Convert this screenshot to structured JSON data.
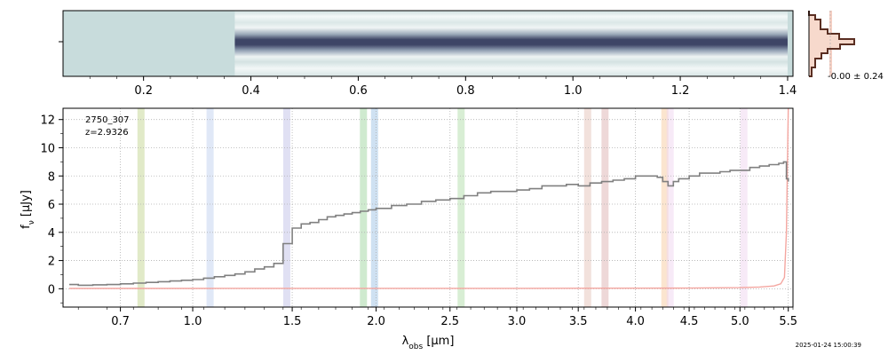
{
  "colors": {
    "spectrum": "#808080",
    "error": "#f4a6a0",
    "grid": "#b0b0b0",
    "trace_bg": "#c9dcdc",
    "trace_dark": "#3e4566",
    "hist_fill": "#f7d9cc",
    "hist_edge": "#5a2e22",
    "hist_band": "#f6d0c4"
  },
  "chart_data": [
    {
      "type": "heatmap",
      "description_of_panel": "2D spectrum",
      "xticks": [
        "0.2",
        "0.4",
        "0.6",
        "0.8",
        "1.0",
        "1.2",
        "1.4"
      ],
      "trace_start_um": 0.37,
      "trace_end_um": 1.4
    },
    {
      "type": "bar",
      "histogram_label": "-0.00 ± 0.24"
    },
    {
      "type": "line",
      "object_id": "2750_307",
      "redshift": "z=2.9326",
      "xlabel_main": "λ",
      "xlabel_sub": "obs",
      "xlabel_unit": " [μm]",
      "ylabel": "f_ν [μJy]",
      "ylabel_main": "f",
      "ylabel_sub": "ν",
      "ylabel_unit": " [μJy]",
      "xlim": [
        0.5,
        5.55
      ],
      "ylim": [
        -1.3,
        12.8
      ],
      "yticks": [
        0,
        2,
        4,
        6,
        8,
        10,
        12
      ],
      "xticks": [
        "0.7",
        "1.0",
        "1.5",
        "2.0",
        "2.5",
        "3.0",
        "3.5",
        "4.0",
        "4.5",
        "5.0",
        "5.5"
      ],
      "xticks_values": [
        0.7,
        1.0,
        1.5,
        2.0,
        2.5,
        3.0,
        3.5,
        4.0,
        4.5,
        5.0,
        5.5
      ],
      "grid": true,
      "lines": [
        {
          "x": 0.78,
          "color": "#c8d89a"
        },
        {
          "x": 1.08,
          "color": "#c6d6f0"
        },
        {
          "x": 1.47,
          "color": "#c6c6ea"
        },
        {
          "x": 1.92,
          "color": "#a8d8a8"
        },
        {
          "x": 1.99,
          "color": "#a8c8e8"
        },
        {
          "x": 2.58,
          "color": "#b8e0b0"
        },
        {
          "x": 3.58,
          "color": "#e8c8c0"
        },
        {
          "x": 3.73,
          "color": "#e0b8b8"
        },
        {
          "x": 4.27,
          "color": "#f8d0a8"
        },
        {
          "x": 4.32,
          "color": "#f0d8f0"
        },
        {
          "x": 5.04,
          "color": "#f0d8f0"
        }
      ],
      "series": [
        {
          "x": [
            0.52,
            0.55,
            0.6,
            0.65,
            0.7,
            0.75,
            0.8,
            0.85,
            0.9,
            0.95,
            1.0,
            1.05,
            1.1,
            1.15,
            1.2,
            1.25,
            1.3,
            1.35,
            1.4,
            1.45,
            1.5,
            1.55,
            1.6,
            1.65,
            1.7,
            1.75,
            1.8,
            1.85,
            1.9,
            1.95,
            2.0,
            2.1,
            2.2,
            2.3,
            2.4,
            2.5,
            2.6,
            2.7,
            2.8,
            2.9,
            3.0,
            3.1,
            3.2,
            3.3,
            3.4,
            3.5,
            3.6,
            3.7,
            3.8,
            3.9,
            4.0,
            4.1,
            4.2,
            4.25,
            4.3,
            4.35,
            4.4,
            4.5,
            4.6,
            4.7,
            4.8,
            4.9,
            5.0,
            5.1,
            5.2,
            5.3,
            5.4,
            5.45,
            5.48,
            5.5
          ],
          "y": [
            0.3,
            0.25,
            0.28,
            0.3,
            0.35,
            0.4,
            0.45,
            0.5,
            0.55,
            0.6,
            0.65,
            0.75,
            0.85,
            0.95,
            1.05,
            1.2,
            1.4,
            1.55,
            1.8,
            3.2,
            4.3,
            4.6,
            4.7,
            4.9,
            5.1,
            5.2,
            5.3,
            5.4,
            5.5,
            5.6,
            5.7,
            5.9,
            6.0,
            6.2,
            6.3,
            6.4,
            6.6,
            6.8,
            6.9,
            6.9,
            7.0,
            7.1,
            7.3,
            7.3,
            7.4,
            7.3,
            7.5,
            7.6,
            7.7,
            7.8,
            8.0,
            8.0,
            7.9,
            7.6,
            7.3,
            7.6,
            7.8,
            8.0,
            8.2,
            8.2,
            8.3,
            8.4,
            8.4,
            8.6,
            8.7,
            8.8,
            8.9,
            9.0,
            7.8,
            7.6
          ]
        },
        {
          "x": [
            0.52,
            1.0,
            2.0,
            3.0,
            4.0,
            4.5,
            5.0,
            5.2,
            5.35,
            5.42,
            5.46,
            5.48,
            5.5
          ],
          "y": [
            0.02,
            0.02,
            0.03,
            0.03,
            0.04,
            0.05,
            0.08,
            0.12,
            0.2,
            0.35,
            0.8,
            4.0,
            12.8
          ]
        }
      ]
    }
  ],
  "timestamp": "2025-01-24 15:00:39"
}
